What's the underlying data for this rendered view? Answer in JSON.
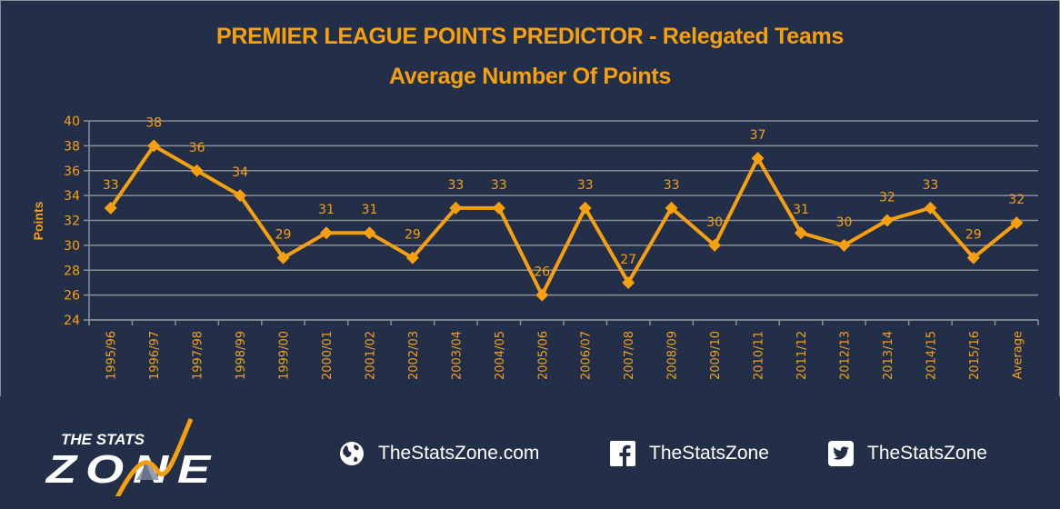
{
  "header": {
    "title_line1": "PREMIER LEAGUE POINTS PREDICTOR - Relegated Teams",
    "title_line2": "Average Number Of Points"
  },
  "colors": {
    "background": "#232f48",
    "accent": "#f7a00f",
    "gridline": "#8a8f99",
    "text_light": "#ffffff"
  },
  "chart_data": {
    "type": "line",
    "title": "PREMIER LEAGUE POINTS PREDICTOR - Relegated Teams",
    "subtitle": "Average Number Of Points",
    "xlabel": "",
    "ylabel": "Points",
    "ylim": [
      24,
      40
    ],
    "yticks": [
      24,
      26,
      28,
      30,
      32,
      34,
      36,
      38,
      40
    ],
    "grid": true,
    "legend": "none",
    "marker": "diamond",
    "data_labels": true,
    "categories": [
      "1995/96",
      "1996/97",
      "1997/98",
      "1998/99",
      "1999/00",
      "2000/01",
      "2001/02",
      "2002/03",
      "2003/04",
      "2004/05",
      "2005/06",
      "2006/07",
      "2007/08",
      "2008/09",
      "2009/10",
      "2010/11",
      "2011/12",
      "2012/13",
      "2013/14",
      "2014/15",
      "2015/16",
      "Average"
    ],
    "series": [
      {
        "name": "Relegated Teams Average Points",
        "values": [
          33,
          38,
          36,
          34,
          29,
          31,
          31,
          29,
          33,
          33,
          26,
          33,
          27,
          33,
          30,
          37,
          31,
          30,
          32,
          33,
          29,
          31.8
        ],
        "labels": [
          "33",
          "38",
          "36",
          "34",
          "29",
          "31",
          "31",
          "29",
          "33",
          "33",
          "26",
          "33",
          "27",
          "33",
          "30",
          "37",
          "31",
          "30",
          "32",
          "33",
          "29",
          "32"
        ]
      }
    ]
  },
  "footer": {
    "logo": {
      "line1": "THE STATS",
      "line2": "ZONE"
    },
    "links": [
      {
        "icon": "globe-icon",
        "label": "TheStatsZone.com"
      },
      {
        "icon": "facebook-icon",
        "label": "TheStatsZone"
      },
      {
        "icon": "twitter-icon",
        "label": "TheStatsZone"
      }
    ]
  }
}
